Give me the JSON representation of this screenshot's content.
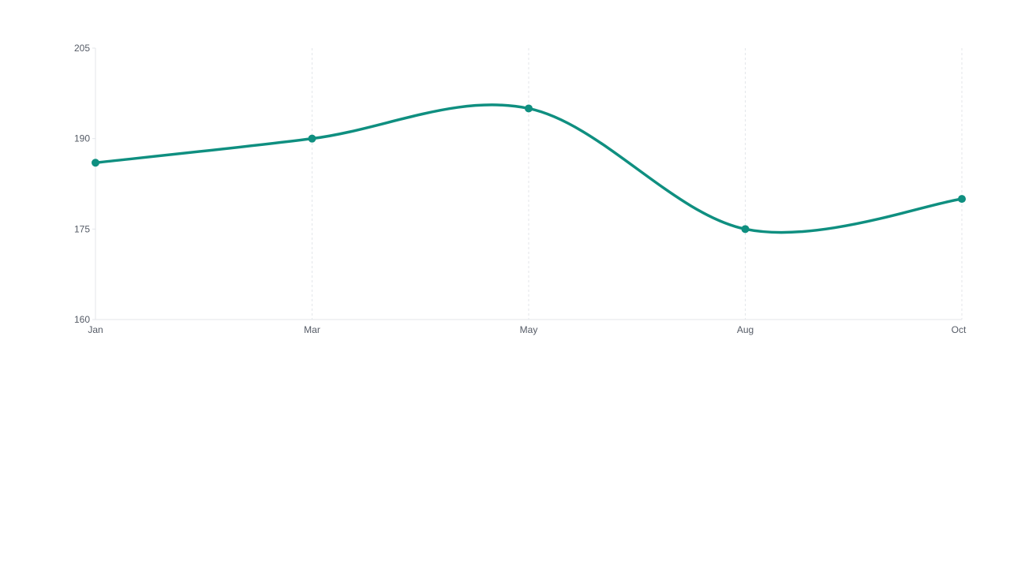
{
  "chart_data": {
    "type": "line",
    "title": "",
    "xlabel": "",
    "ylabel": "",
    "categories": [
      "Jan",
      "Mar",
      "May",
      "Aug",
      "Oct"
    ],
    "series": [
      {
        "values": [
          186,
          190,
          195,
          175,
          180
        ],
        "color": "#0f8f80"
      }
    ],
    "ylim": [
      160,
      205
    ],
    "yticks": [
      160,
      175,
      190,
      205
    ],
    "grid": {
      "x": true,
      "y": false
    },
    "legend": "none",
    "curve": "smooth",
    "markers": true
  },
  "colors": {
    "line": "#0f8f80",
    "grid": "#e3e6ea",
    "axis": "#e3e6ea",
    "tick_text": "#555b66"
  }
}
